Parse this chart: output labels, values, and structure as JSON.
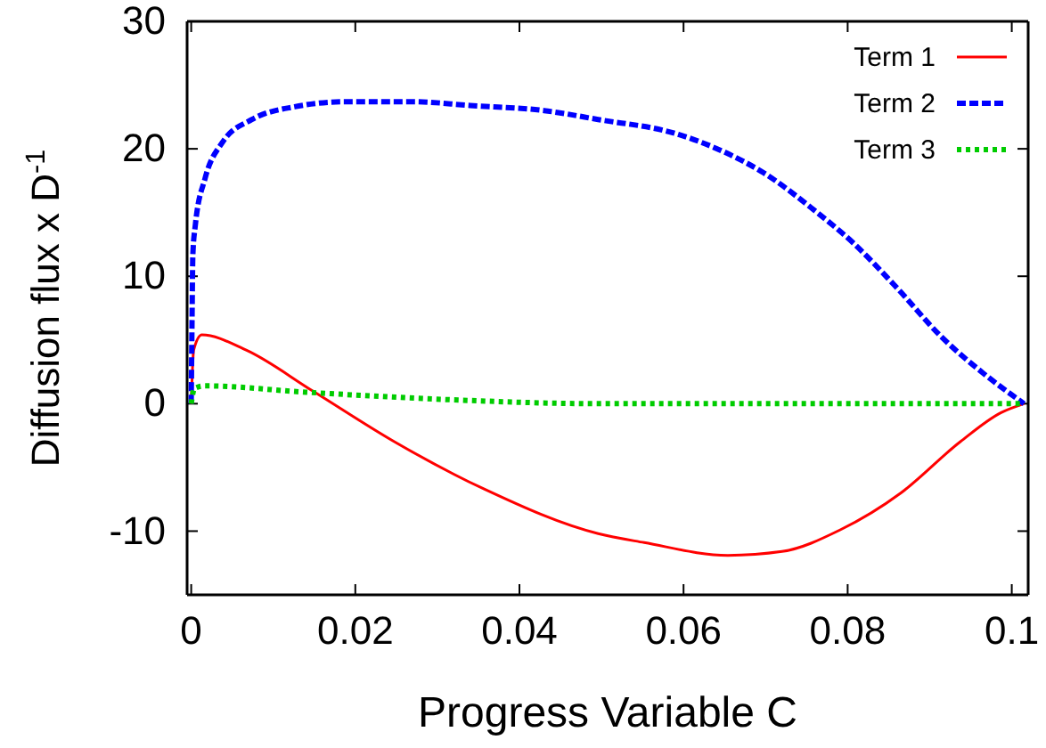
{
  "chart_data": {
    "type": "line",
    "xlabel": "Progress Variable C",
    "ylabel": "Diffusion flux x D$^{-1}$",
    "xlim": [
      -0.0005,
      0.102
    ],
    "ylim": [
      -15,
      30
    ],
    "xticks": [
      0,
      0.02,
      0.04,
      0.06,
      0.08,
      {
        "value": 0.1,
        "label": "0.1"
      }
    ],
    "yticks": [
      -10,
      0,
      10,
      20,
      30
    ],
    "legend": "top right",
    "grid": false,
    "series": [
      {
        "name": "Term 1",
        "color": "#ff0000",
        "line_style": "solid",
        "x": [
          0,
          0.0003,
          0.0013,
          0.0067,
          0.0148,
          0.0248,
          0.0357,
          0.0496,
          0.0552,
          0.0654,
          0.072,
          0.0791,
          0.0865,
          0.0937,
          0.0987,
          0.1015
        ],
        "values": [
          0,
          4.2,
          5.4,
          4.2,
          1.0,
          -3.0,
          -6.7,
          -10.2,
          -10.9,
          -11.9,
          -11.6,
          -9.9,
          -7.0,
          -3.0,
          -0.7,
          0
        ]
      },
      {
        "name": "Term 2",
        "color": "#0000ff",
        "line_style": "dashed",
        "x": [
          0,
          0.0001,
          0.0002,
          0.0005,
          0.0017,
          0.0038,
          0.0074,
          0.0126,
          0.019,
          0.027,
          0.034,
          0.043,
          0.0496,
          0.059,
          0.0648,
          0.0698,
          0.0757,
          0.0807,
          0.0857,
          0.0915,
          0.0965,
          0.1015
        ],
        "values": [
          0,
          6.5,
          11.7,
          14,
          17.7,
          20.5,
          22.3,
          23.3,
          23.7,
          23.7,
          23.4,
          23.0,
          22.3,
          21.2,
          19.8,
          18.1,
          15.3,
          12.6,
          9.3,
          5.2,
          2.4,
          0
        ]
      },
      {
        "name": "Term 3",
        "color": "#00cc00",
        "line_style": "dotted",
        "x": [
          0,
          0.0004,
          0.0017,
          0.014,
          0.032,
          0.0496,
          0.075,
          0.1015
        ],
        "values": [
          0,
          1.2,
          1.4,
          0.9,
          0.3,
          0,
          0,
          0
        ]
      }
    ]
  }
}
